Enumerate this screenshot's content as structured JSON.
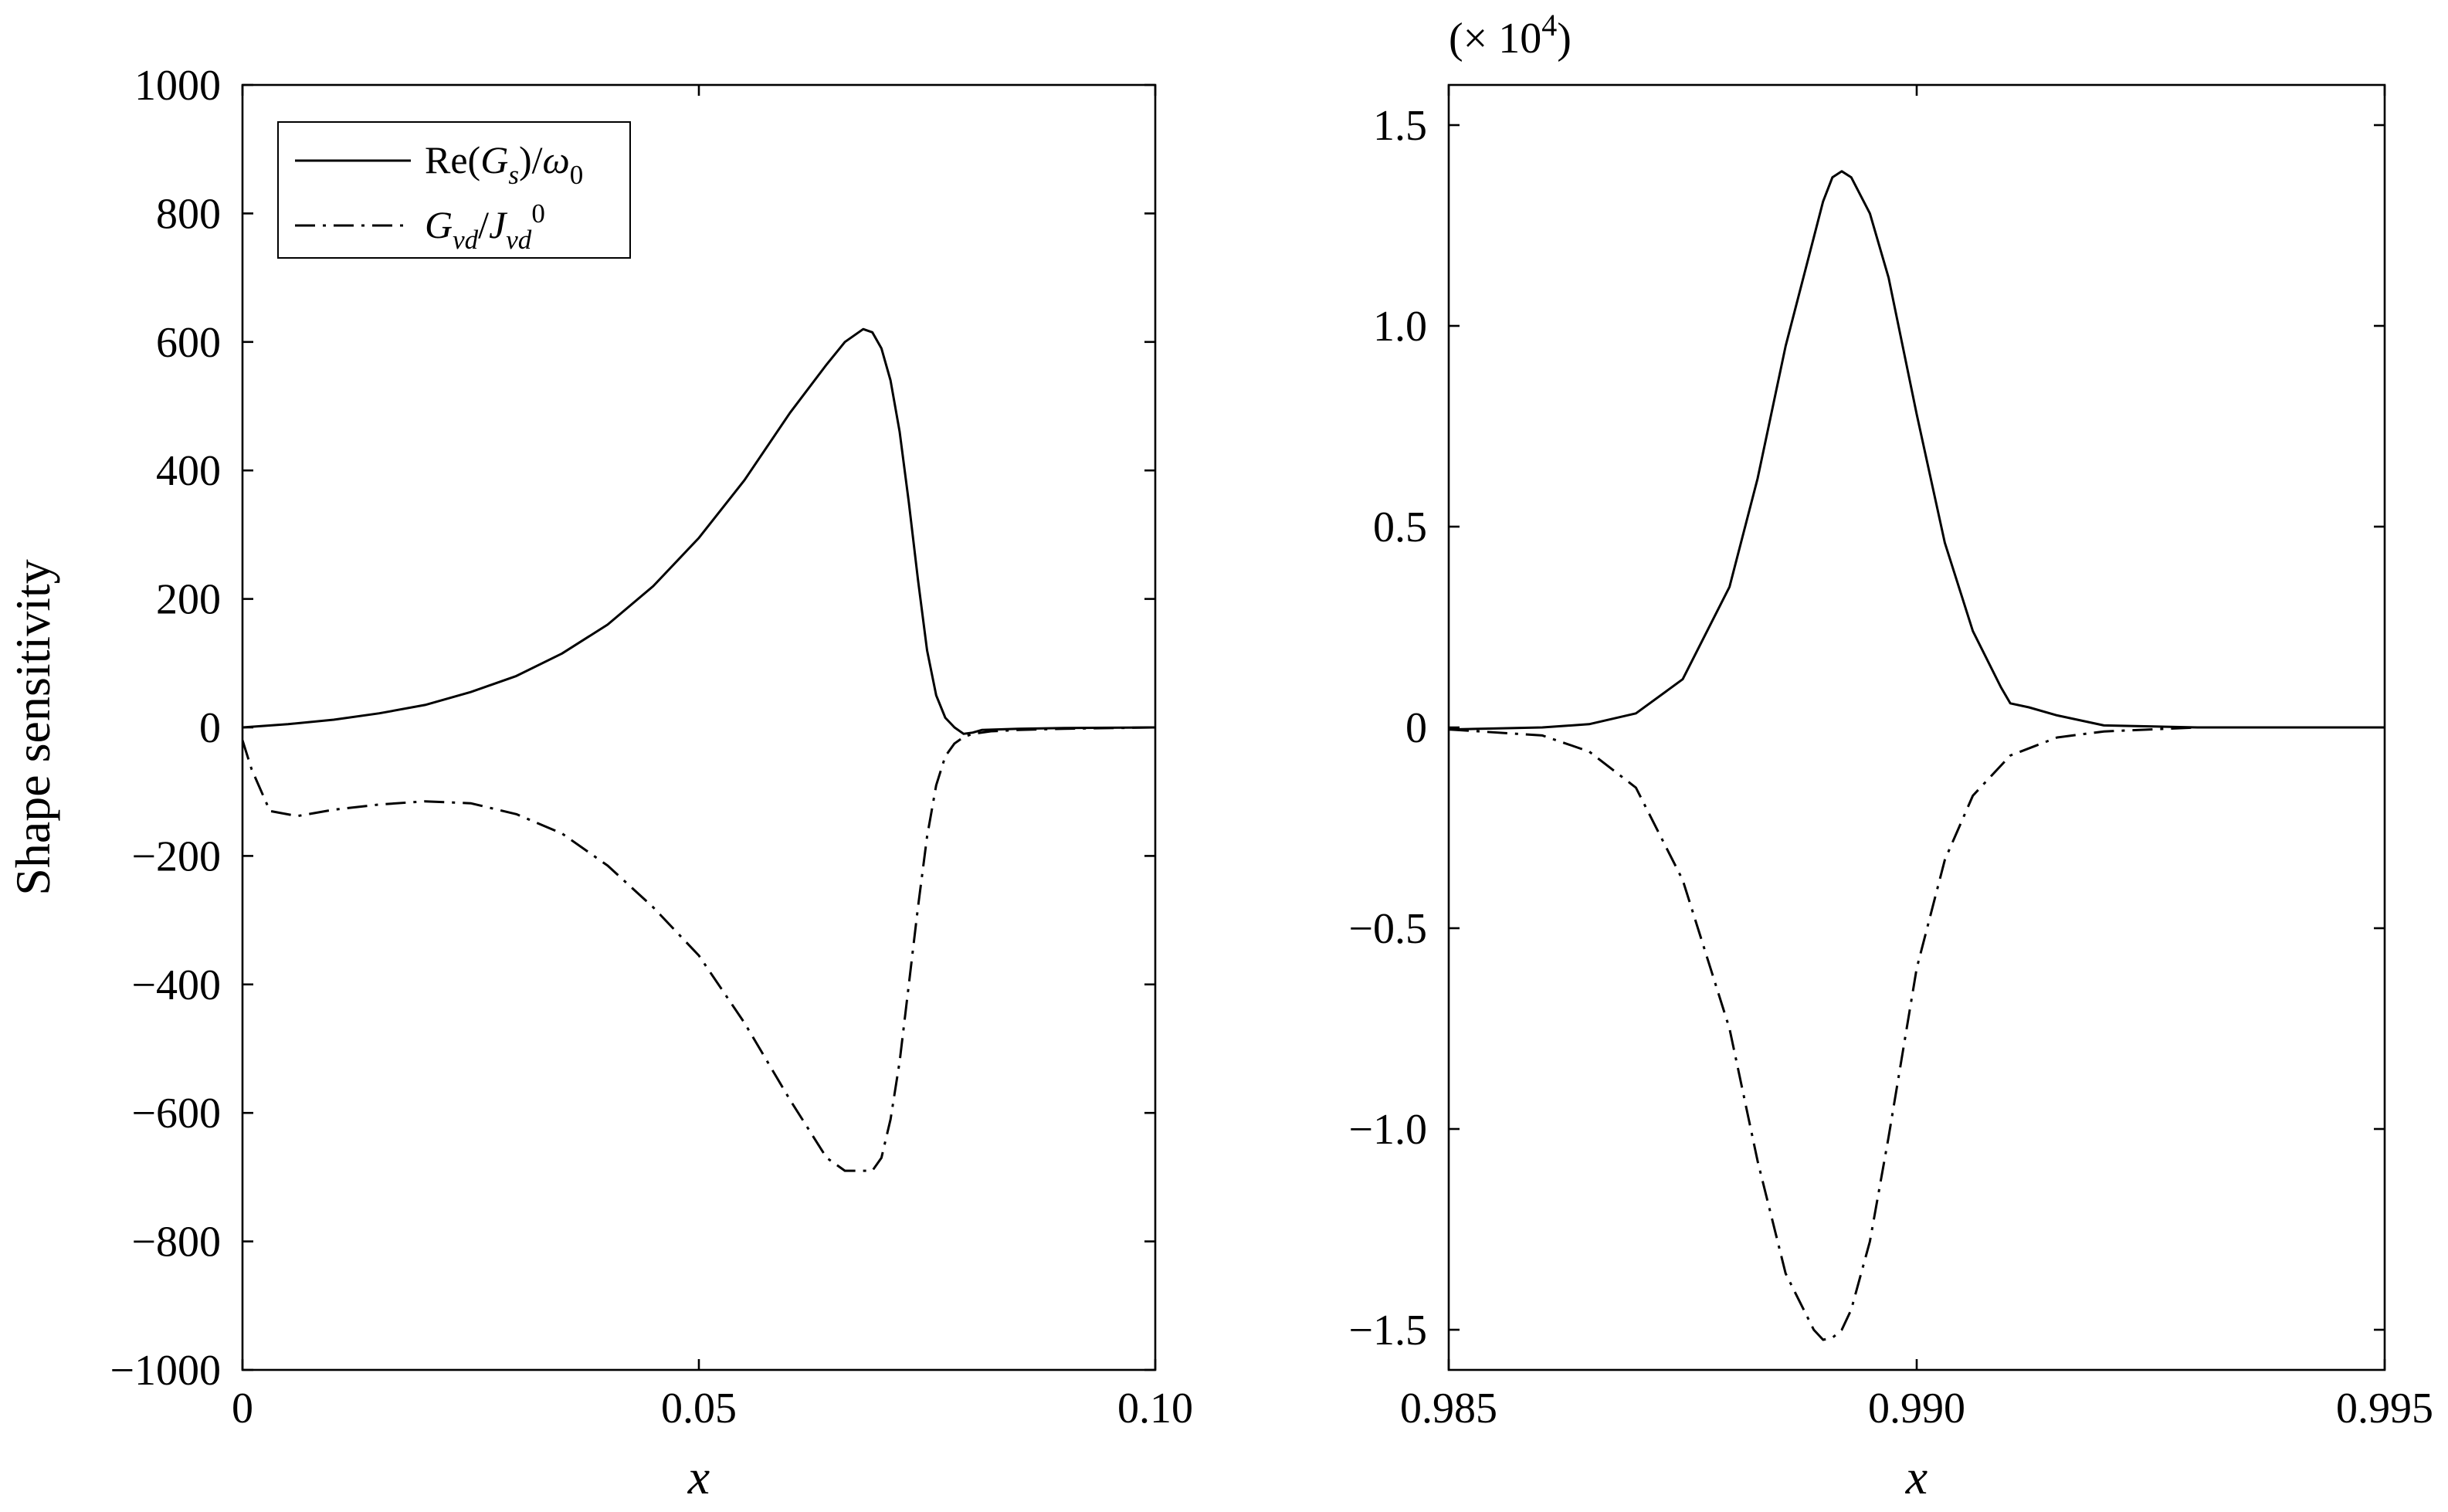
{
  "chart_data": [
    {
      "type": "line",
      "xlabel": "x",
      "ylabel": "Shape sensitivity",
      "xlim": [
        0,
        0.1
      ],
      "ylim": [
        -1000,
        1000
      ],
      "xticks": [
        0,
        0.05,
        0.1
      ],
      "xtick_labels": [
        "0",
        "0.05",
        "0.10"
      ],
      "yticks": [
        1000,
        800,
        600,
        400,
        200,
        0,
        -200,
        -400,
        -600,
        -800,
        -1000
      ],
      "ytick_labels": [
        "1000",
        "800",
        "600",
        "400",
        "200",
        "0",
        "−200",
        "−400",
        "−600",
        "−800",
        "−1000"
      ],
      "grid": false,
      "legend": {
        "position": "top-left",
        "entries": [
          {
            "line": "solid",
            "parts": [
              [
                "Re(",
                "n"
              ],
              [
                "G",
                "i"
              ],
              [
                "s",
                "i-sub"
              ],
              [
                ")/",
                "n"
              ],
              [
                "ω",
                "i"
              ],
              [
                "0",
                "n-sub"
              ]
            ]
          },
          {
            "line": "dashdot",
            "parts": [
              [
                "G",
                "i"
              ],
              [
                "vd",
                "i-sub"
              ],
              [
                "/",
                "n"
              ],
              [
                "J",
                "i"
              ],
              [
                "vd",
                "i-sub"
              ],
              [
                "0",
                "n-sup"
              ]
            ]
          }
        ]
      },
      "series": [
        {
          "name": "Re(Gs)/ω0",
          "style": "solid",
          "x": [
            0,
            0.005,
            0.01,
            0.015,
            0.02,
            0.025,
            0.03,
            0.035,
            0.04,
            0.045,
            0.05,
            0.055,
            0.06,
            0.064,
            0.066,
            0.068,
            0.069,
            0.07,
            0.071,
            0.072,
            0.073,
            0.074,
            0.075,
            0.076,
            0.077,
            0.078,
            0.079,
            0.08,
            0.081,
            0.085,
            0.09,
            0.1
          ],
          "y": [
            0,
            5,
            12,
            22,
            35,
            55,
            80,
            115,
            160,
            220,
            295,
            385,
            490,
            565,
            600,
            620,
            615,
            590,
            540,
            460,
            350,
            230,
            120,
            50,
            15,
            0,
            -10,
            -8,
            -4,
            -2,
            -1,
            0
          ]
        },
        {
          "name": "Gvd/Jvd0",
          "style": "dashdot",
          "x": [
            0,
            0.001,
            0.003,
            0.006,
            0.01,
            0.015,
            0.02,
            0.025,
            0.03,
            0.035,
            0.04,
            0.045,
            0.05,
            0.055,
            0.06,
            0.064,
            0.066,
            0.068,
            0.069,
            0.07,
            0.071,
            0.072,
            0.073,
            0.074,
            0.075,
            0.076,
            0.077,
            0.078,
            0.079,
            0.08,
            0.082,
            0.085,
            0.09,
            0.1
          ],
          "y": [
            -20,
            -65,
            -130,
            -138,
            -128,
            -120,
            -115,
            -118,
            -135,
            -165,
            -215,
            -280,
            -355,
            -460,
            -580,
            -670,
            -690,
            -690,
            -690,
            -670,
            -610,
            -520,
            -400,
            -280,
            -170,
            -90,
            -45,
            -25,
            -15,
            -10,
            -6,
            -4,
            -2,
            0
          ]
        }
      ]
    },
    {
      "type": "line",
      "xlabel": "x",
      "ylabel": "",
      "multiplier": "(× 10",
      "multiplier_exp": "4",
      "multiplier_close": ")",
      "xlim": [
        0.985,
        0.995
      ],
      "ylim": [
        -1.6,
        1.6
      ],
      "xticks": [
        0.985,
        0.99,
        0.995
      ],
      "xtick_labels": [
        "0.985",
        "0.990",
        "0.995"
      ],
      "yticks": [
        1.5,
        1.0,
        0.5,
        0,
        -0.5,
        -1.0,
        -1.5
      ],
      "ytick_labels": [
        "1.5",
        "1.0",
        "0.5",
        "0",
        "−0.5",
        "−1.0",
        "−1.5"
      ],
      "grid": false,
      "series": [
        {
          "name": "Re(Gs)/ω0",
          "style": "solid",
          "x": [
            0.985,
            0.986,
            0.9865,
            0.987,
            0.9875,
            0.988,
            0.9883,
            0.9886,
            0.9889,
            0.989,
            0.9891,
            0.9892,
            0.9893,
            0.9895,
            0.9897,
            0.99,
            0.9903,
            0.9906,
            0.9909,
            0.991,
            0.9912,
            0.9915,
            0.992,
            0.993,
            0.995
          ],
          "y": [
            -0.005,
            0,
            0.008,
            0.035,
            0.12,
            0.35,
            0.62,
            0.95,
            1.22,
            1.31,
            1.37,
            1.385,
            1.37,
            1.28,
            1.12,
            0.78,
            0.46,
            0.24,
            0.1,
            0.06,
            0.05,
            0.03,
            0.005,
            0,
            0
          ]
        },
        {
          "name": "Gvd/Jvd0",
          "style": "dashdot",
          "x": [
            0.985,
            0.986,
            0.9865,
            0.987,
            0.9875,
            0.988,
            0.9883,
            0.9886,
            0.9889,
            0.989,
            0.9891,
            0.9892,
            0.9893,
            0.9895,
            0.9897,
            0.99,
            0.9903,
            0.9906,
            0.991,
            0.9915,
            0.992,
            0.993,
            0.995
          ],
          "y": [
            -0.005,
            -0.02,
            -0.06,
            -0.15,
            -0.38,
            -0.75,
            -1.08,
            -1.36,
            -1.5,
            -1.525,
            -1.52,
            -1.5,
            -1.45,
            -1.28,
            -1.02,
            -0.6,
            -0.33,
            -0.17,
            -0.07,
            -0.025,
            -0.01,
            0,
            0
          ]
        }
      ]
    }
  ]
}
